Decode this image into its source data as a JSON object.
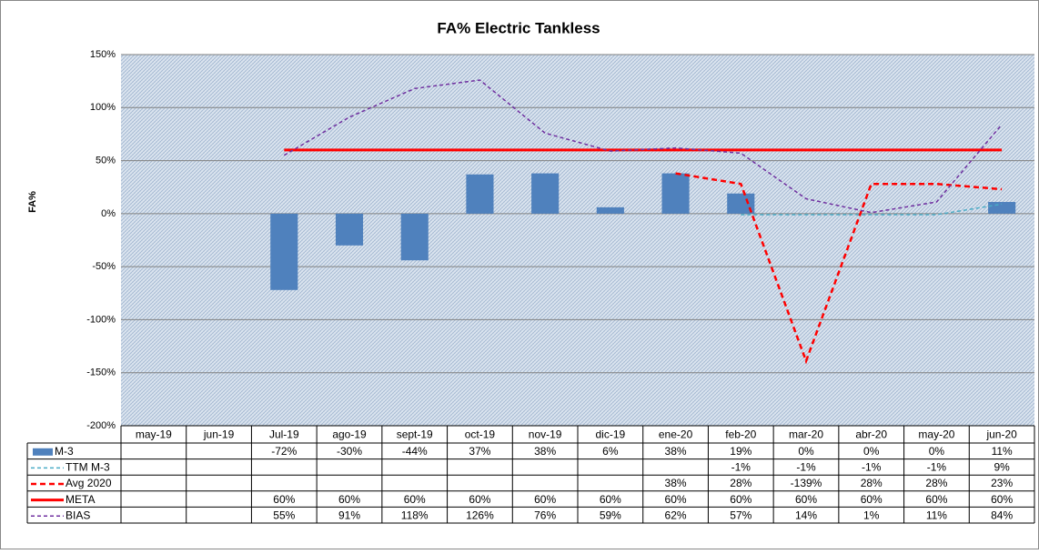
{
  "chart_data": {
    "type": "bar_line_table",
    "title": "FA% Electric Tankless",
    "y_label": "FA%",
    "categories": [
      "may-19",
      "jun-19",
      "Jul-19",
      "ago-19",
      "sept-19",
      "oct-19",
      "nov-19",
      "dic-19",
      "ene-20",
      "feb-20",
      "mar-20",
      "abr-20",
      "may-20",
      "jun-20"
    ],
    "ylim": [
      -200,
      150
    ],
    "yticks": [
      {
        "value": -200,
        "label": "-200%"
      },
      {
        "value": -150,
        "label": "-150%"
      },
      {
        "value": -100,
        "label": "-100%"
      },
      {
        "value": -50,
        "label": "-50%"
      },
      {
        "value": 0,
        "label": "0%"
      },
      {
        "value": 50,
        "label": "50%"
      },
      {
        "value": 100,
        "label": "100%"
      },
      {
        "value": 150,
        "label": "150%"
      }
    ],
    "grid": true,
    "series": [
      {
        "name": "M-3",
        "kind": "bar",
        "color": "#4f81bd",
        "values": [
          null,
          null,
          -72,
          -30,
          -44,
          37,
          38,
          6,
          38,
          19,
          0,
          0,
          0,
          11
        ],
        "value_labels": [
          null,
          null,
          "-72%",
          "-30%",
          "-44%",
          "37%",
          "38%",
          "6%",
          "38%",
          "19%",
          "0%",
          "0%",
          "0%",
          "11%"
        ]
      },
      {
        "name": "TTM M-3",
        "kind": "line",
        "dash": "4,3",
        "width": 1.5,
        "color": "#4bacc6",
        "values": [
          null,
          null,
          null,
          null,
          null,
          null,
          null,
          null,
          null,
          -1,
          -1,
          -1,
          -1,
          9
        ],
        "value_labels": [
          null,
          null,
          null,
          null,
          null,
          null,
          null,
          null,
          null,
          "-1%",
          "-1%",
          "-1%",
          "-1%",
          "9%"
        ]
      },
      {
        "name": "Avg 2020",
        "kind": "line",
        "dash": "6,4",
        "width": 2.5,
        "color": "#ff0000",
        "values": [
          null,
          null,
          null,
          null,
          null,
          null,
          null,
          null,
          38,
          28,
          -139,
          28,
          28,
          23
        ],
        "value_labels": [
          null,
          null,
          null,
          null,
          null,
          null,
          null,
          null,
          "38%",
          "28%",
          "-139%",
          "28%",
          "28%",
          "23%"
        ]
      },
      {
        "name": "META",
        "kind": "line",
        "dash": "",
        "width": 3,
        "color": "#ff0000",
        "values": [
          null,
          null,
          60,
          60,
          60,
          60,
          60,
          60,
          60,
          60,
          60,
          60,
          60,
          60
        ],
        "value_labels": [
          null,
          null,
          "60%",
          "60%",
          "60%",
          "60%",
          "60%",
          "60%",
          "60%",
          "60%",
          "60%",
          "60%",
          "60%",
          "60%"
        ]
      },
      {
        "name": "BIAS",
        "kind": "line",
        "dash": "4,3",
        "width": 1.5,
        "color": "#7030a0",
        "values": [
          null,
          null,
          55,
          91,
          118,
          126,
          76,
          59,
          62,
          57,
          14,
          1,
          11,
          84
        ],
        "value_labels": [
          null,
          null,
          "55%",
          "91%",
          "118%",
          "126%",
          "76%",
          "59%",
          "62%",
          "57%",
          "14%",
          "1%",
          "11%",
          "84%"
        ]
      }
    ]
  }
}
